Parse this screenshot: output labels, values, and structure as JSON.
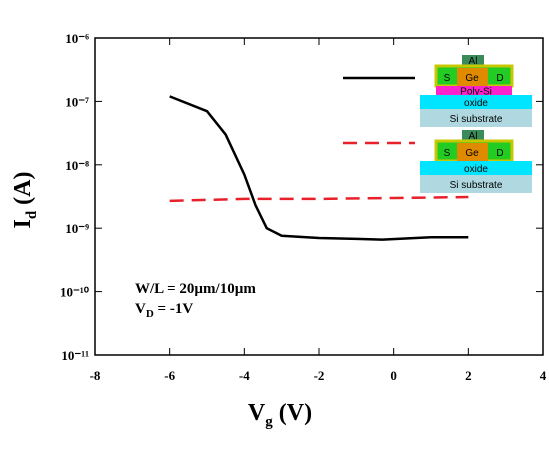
{
  "chart_data": {
    "type": "line",
    "log_y": true,
    "xlabel": {
      "main": "V",
      "sub": "g",
      "rest": " (V)"
    },
    "ylabel": {
      "main": "I",
      "sub": "d",
      "rest": " (A)"
    },
    "annotations": [
      {
        "text": "W/L = 20µm/10µm"
      },
      {
        "main": "V",
        "sub": "D",
        "rest": " = -1V"
      }
    ],
    "xlim": [
      -8,
      4
    ],
    "xticks": [
      -8,
      -6,
      -4,
      -2,
      0,
      2,
      4
    ],
    "ylim": [
      1e-11,
      1e-06
    ],
    "yticks": [
      {
        "value": 1e-11,
        "label": "10⁻¹¹"
      },
      {
        "value": 1e-10,
        "label": "10⁻¹⁰"
      },
      {
        "value": 1e-09,
        "label": "10⁻⁹"
      },
      {
        "value": 1e-08,
        "label": "10⁻⁸"
      },
      {
        "value": 1e-07,
        "label": "10⁻⁷"
      },
      {
        "value": 1e-06,
        "label": "10⁻⁶"
      }
    ],
    "series": [
      {
        "color": "#000000",
        "dash": false,
        "x": [
          -6,
          -5,
          -4.5,
          -4,
          -3.7,
          -3.4,
          -3,
          -2,
          -1,
          -0.3,
          1,
          2
        ],
        "values": [
          1.2e-07,
          7e-08,
          3e-08,
          7e-09,
          2.3e-09,
          1e-09,
          7.6e-10,
          7e-10,
          6.8e-10,
          6.6e-10,
          7.2e-10,
          7.2e-10
        ]
      },
      {
        "color": "#e8202a",
        "dash": true,
        "x": [
          -6,
          -4,
          -2,
          0,
          2
        ],
        "values": [
          2.7e-09,
          2.9e-09,
          2.9e-09,
          3e-09,
          3.1e-09
        ]
      }
    ],
    "legend_diagrams": [
      {
        "gate": "Al",
        "source": "S",
        "channel": "Ge",
        "drain": "D",
        "layers": [
          "Poly-Si",
          "oxide",
          "Si substrate"
        ]
      },
      {
        "gate": "Al",
        "source": "S",
        "channel": "Ge",
        "drain": "D",
        "layers": [
          "oxide",
          "Si substrate"
        ]
      }
    ]
  }
}
